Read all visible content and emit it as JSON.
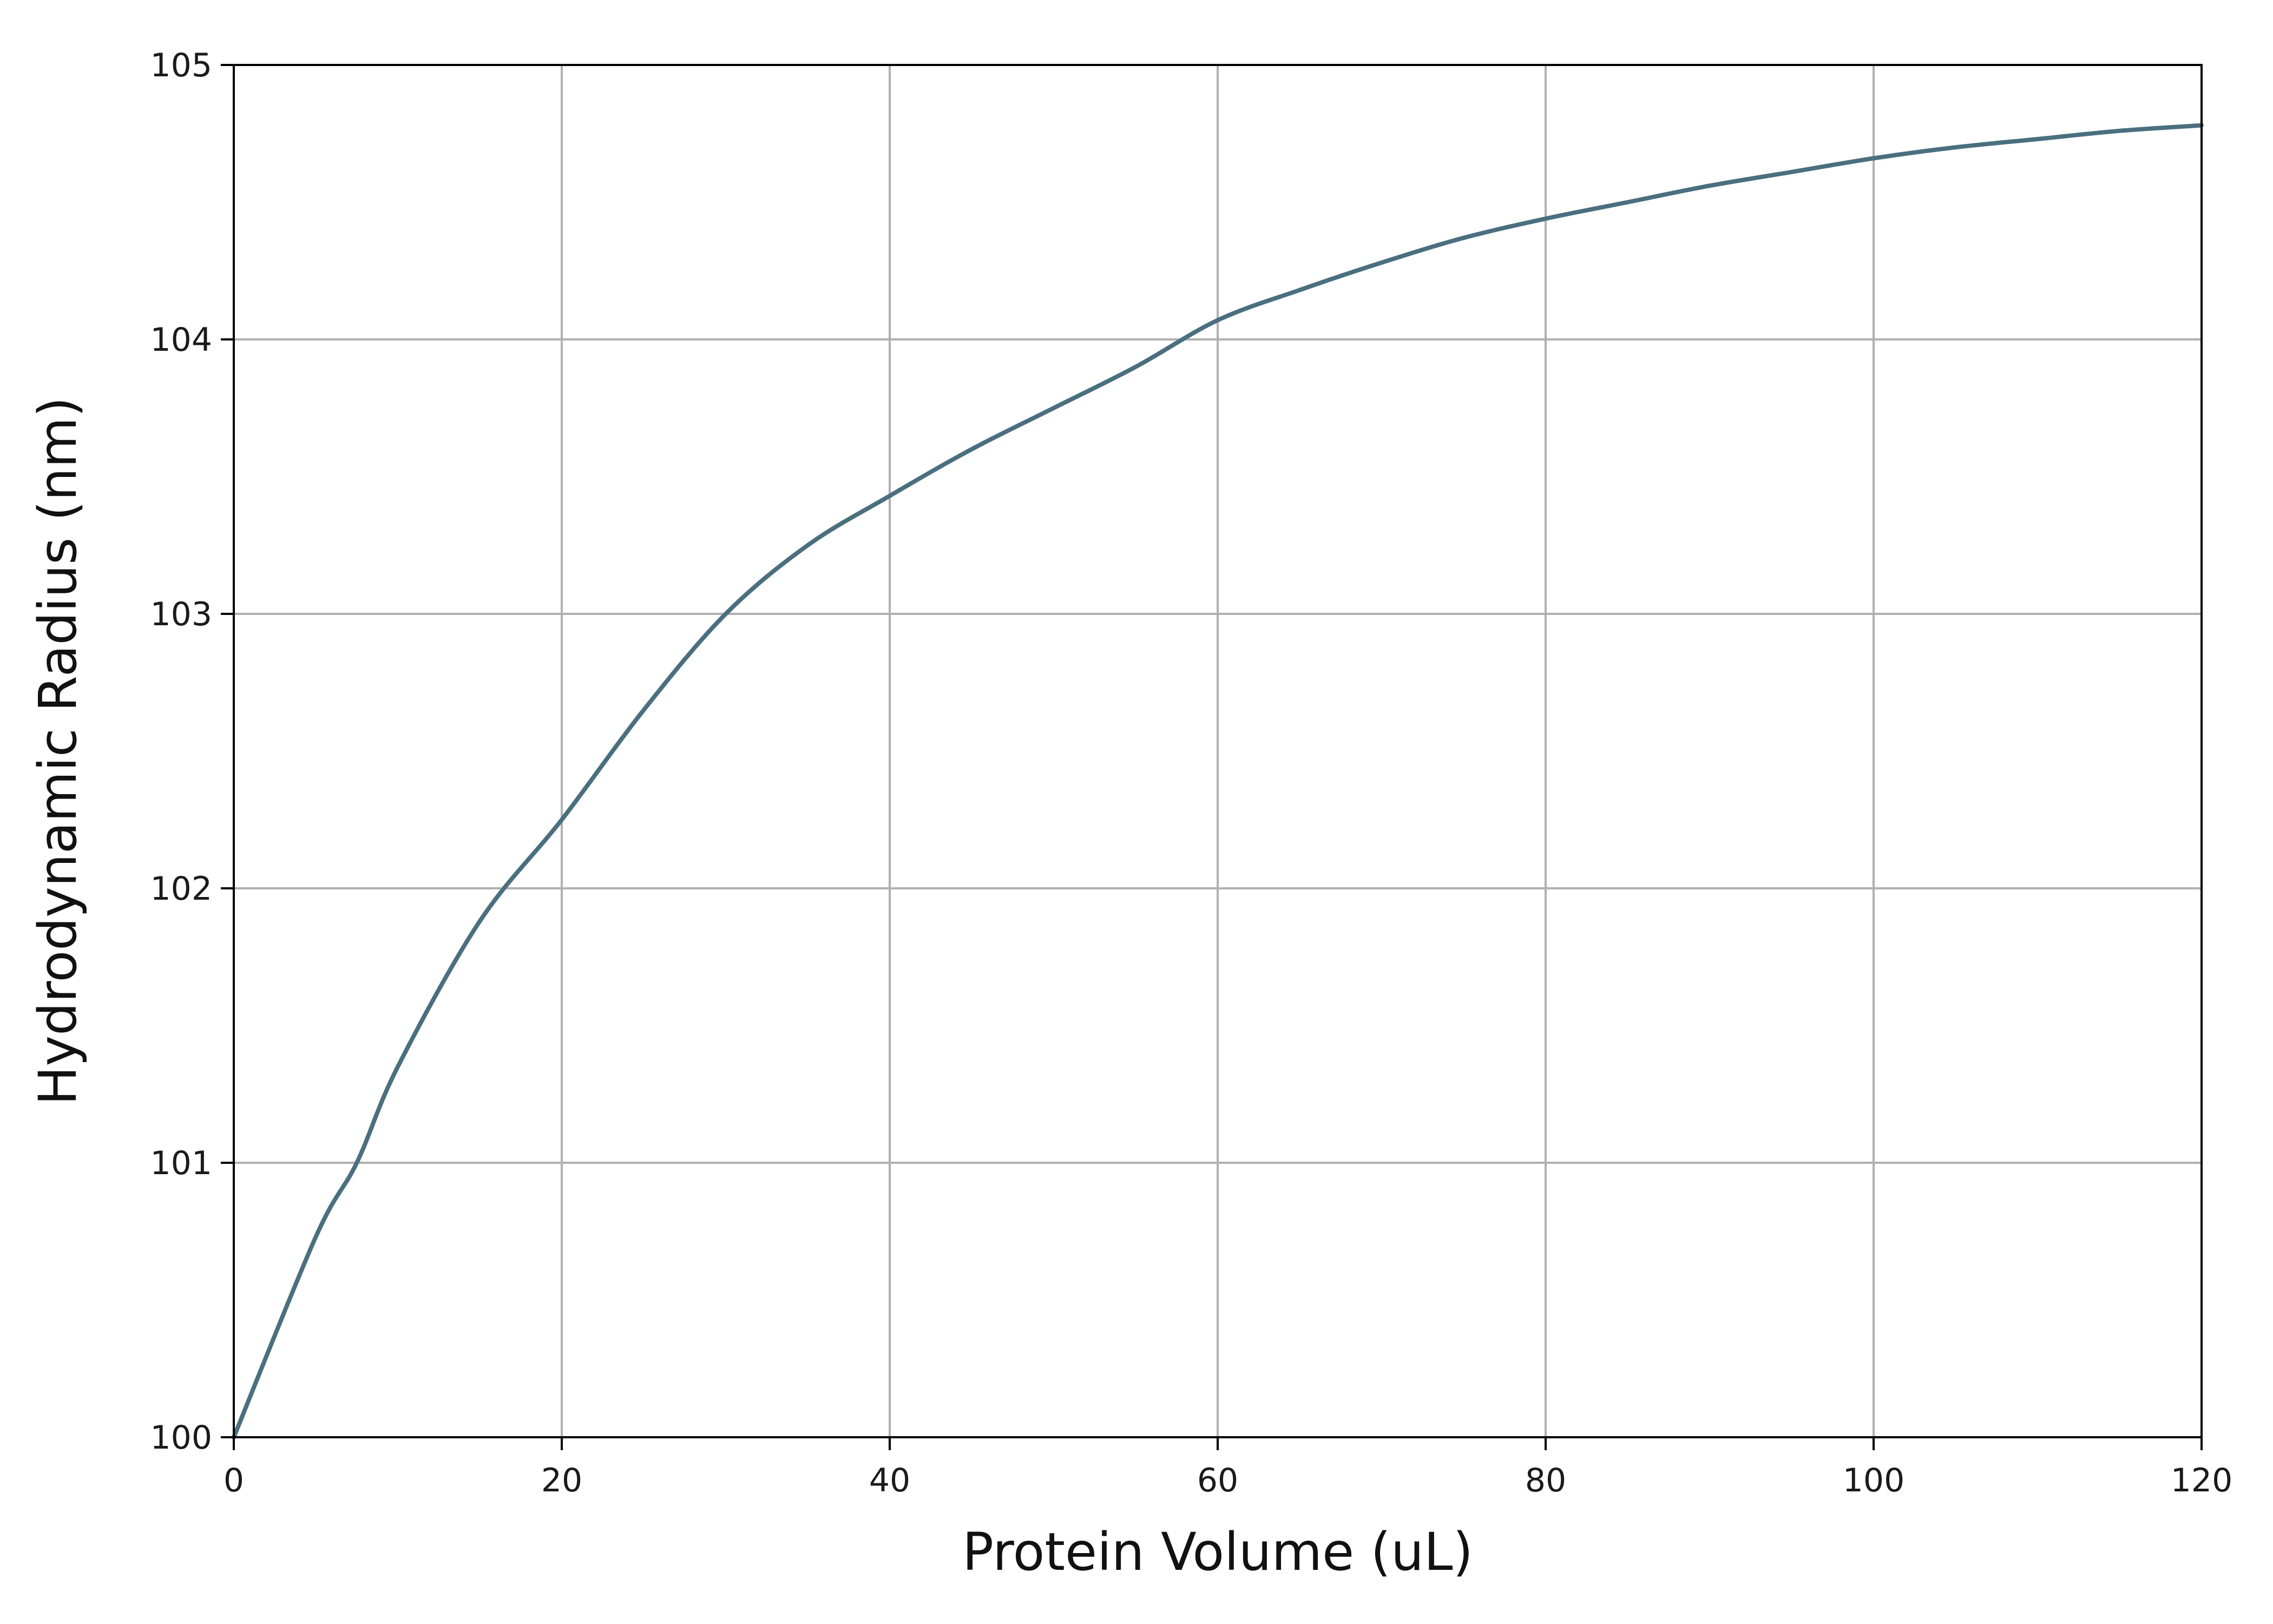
{
  "chart_data": {
    "type": "line",
    "xlabel": "Protein Volume (uL)",
    "ylabel": "Hydrodynamic Radius (nm)",
    "xlim": [
      0,
      120
    ],
    "ylim": [
      100,
      105
    ],
    "xticks": [
      0,
      20,
      40,
      60,
      80,
      100,
      120
    ],
    "yticks": [
      100,
      101,
      102,
      103,
      104,
      105
    ],
    "grid": true,
    "colors": {
      "line": "#4a6f7f",
      "grid": "#b0b0b0",
      "axis": "#000000"
    },
    "series": [
      {
        "x": [
          0,
          5,
          7.5,
          10,
          15,
          20,
          25,
          30,
          35,
          40,
          45,
          50,
          55,
          60,
          65,
          70,
          75,
          80,
          85,
          90,
          95,
          100,
          105,
          110,
          115,
          120
        ],
        "values": [
          100.0,
          100.73,
          101.0,
          101.35,
          101.88,
          102.25,
          102.65,
          103.0,
          103.25,
          103.43,
          103.6,
          103.75,
          103.9,
          104.07,
          104.18,
          104.28,
          104.37,
          104.44,
          104.5,
          104.56,
          104.61,
          104.66,
          104.7,
          104.73,
          104.76,
          104.78
        ]
      }
    ]
  }
}
